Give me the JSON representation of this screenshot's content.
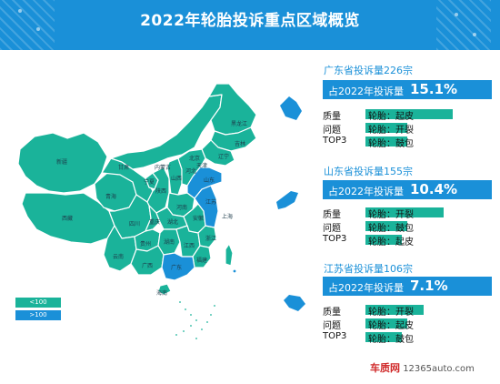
{
  "title": "2022年轮胎投诉重点区域概览",
  "legend": [
    {
      "label": "<100",
      "color": "#1ab39a"
    },
    {
      "label": ">100",
      "color": "#1a90d8"
    }
  ],
  "map": {
    "province_labels": [
      "黑龙江",
      "吉林",
      "辽宁",
      "内蒙古",
      "新疆",
      "西藏",
      "青海",
      "甘肃",
      "宁夏",
      "陕西",
      "山西",
      "河北",
      "北京",
      "天津",
      "山东",
      "河南",
      "江苏",
      "上海",
      "安徽",
      "湖北",
      "浙江",
      "四川",
      "重庆",
      "贵州",
      "湖南",
      "江西",
      "福建",
      "云南",
      "广西",
      "广东",
      "海南"
    ]
  },
  "regions": [
    {
      "name": "广东省投诉量226宗",
      "share_label": "占2022年投诉量",
      "share_value": "15.1%",
      "rows": [
        {
          "label": "质量",
          "text": "轮胎：起皮"
        },
        {
          "label": "问题",
          "text": "轮胎：开裂"
        },
        {
          "label": "TOP3",
          "text": "轮胎：鼓包"
        }
      ]
    },
    {
      "name": "山东省投诉量155宗",
      "share_label": "占2022年投诉量",
      "share_value": "10.4%",
      "rows": [
        {
          "label": "质量",
          "text": "轮胎：开裂"
        },
        {
          "label": "问题",
          "text": "轮胎：鼓包"
        },
        {
          "label": "TOP3",
          "text": "轮胎：起皮"
        }
      ]
    },
    {
      "name": "江苏省投诉量106宗",
      "share_label": "占2022年投诉量",
      "share_value": "7.1%",
      "rows": [
        {
          "label": "质量",
          "text": "轮胎：开裂"
        },
        {
          "label": "问题",
          "text": "轮胎：起皮"
        },
        {
          "label": "TOP3",
          "text": "轮胎：鼓包"
        }
      ]
    }
  ],
  "watermark": {
    "brand": "车质网",
    "url": "12365auto.com"
  }
}
